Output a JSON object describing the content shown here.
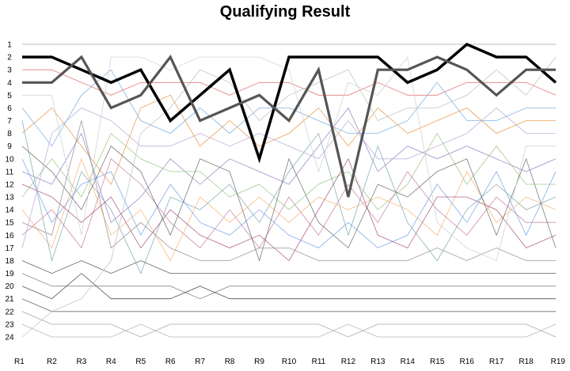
{
  "chart_data": {
    "type": "line",
    "title": "Qualifying Result",
    "xlabel": "",
    "ylabel": "",
    "x": [
      "R1",
      "R2",
      "R3",
      "R4",
      "R5",
      "R6",
      "R7",
      "R8",
      "R9",
      "R10",
      "R11",
      "R12",
      "R13",
      "R14",
      "R15",
      "R16",
      "R17",
      "R18",
      "R19"
    ],
    "y_ticks": [
      1,
      2,
      3,
      4,
      5,
      6,
      7,
      8,
      9,
      10,
      11,
      12,
      13,
      14,
      15,
      16,
      17,
      18,
      19,
      20,
      21,
      22,
      23,
      24
    ],
    "ylim": [
      24,
      1
    ],
    "y_inverted": true,
    "grid": false,
    "series": [
      {
        "color": "#000000",
        "emphasis": true,
        "values": [
          2,
          2,
          3,
          4,
          3,
          7,
          5,
          3,
          10,
          2,
          2,
          2,
          2,
          4,
          3,
          1,
          2,
          2,
          4
        ]
      },
      {
        "color": "#555555",
        "emphasis": true,
        "values": [
          4,
          4,
          2,
          6,
          5,
          2,
          7,
          6,
          5,
          7,
          3,
          13,
          3,
          3,
          2,
          3,
          5,
          3,
          3
        ]
      },
      {
        "color": "#999999",
        "values": [
          1,
          1,
          1,
          1,
          1,
          1,
          1,
          1,
          1,
          1,
          1,
          1,
          1,
          1,
          1,
          1,
          1,
          1,
          1
        ]
      },
      {
        "color": "#e06666",
        "values": [
          3,
          3,
          4,
          5,
          4,
          4,
          4,
          5,
          4,
          4,
          5,
          5,
          4,
          5,
          5,
          4,
          4,
          4,
          5
        ]
      },
      {
        "color": "#6fa8dc",
        "values": [
          6,
          9,
          5,
          3,
          7,
          8,
          6,
          8,
          6,
          6,
          7,
          8,
          8,
          7,
          4,
          7,
          7,
          6,
          6
        ]
      },
      {
        "color": "#e69138",
        "values": [
          8,
          6,
          9,
          12,
          6,
          5,
          9,
          7,
          9,
          8,
          6,
          9,
          6,
          8,
          7,
          6,
          8,
          7,
          7
        ]
      },
      {
        "color": "#8e7cc3",
        "values": [
          11,
          12,
          8,
          15,
          13,
          10,
          12,
          10,
          11,
          12,
          9,
          6,
          11,
          9,
          10,
          9,
          10,
          11,
          10
        ]
      },
      {
        "color": "#93c47d",
        "values": [
          13,
          10,
          13,
          8,
          10,
          11,
          11,
          13,
          12,
          14,
          12,
          11,
          14,
          12,
          8,
          12,
          9,
          12,
          12
        ]
      },
      {
        "color": "#76a5af",
        "values": [
          7,
          18,
          11,
          14,
          19,
          13,
          14,
          12,
          15,
          11,
          8,
          16,
          9,
          15,
          18,
          14,
          12,
          14,
          13
        ]
      },
      {
        "color": "#c27ba0",
        "values": [
          16,
          14,
          17,
          10,
          12,
          15,
          17,
          14,
          17,
          13,
          16,
          12,
          15,
          11,
          14,
          16,
          13,
          15,
          15
        ]
      },
      {
        "color": "#f6b26b",
        "values": [
          14,
          17,
          10,
          16,
          14,
          18,
          13,
          15,
          13,
          15,
          13,
          14,
          13,
          14,
          16,
          11,
          15,
          13,
          14
        ]
      },
      {
        "color": "#6d9eeb",
        "values": [
          10,
          15,
          12,
          11,
          16,
          12,
          15,
          16,
          14,
          16,
          17,
          15,
          17,
          16,
          12,
          15,
          11,
          16,
          11
        ]
      },
      {
        "color": "#a64d79",
        "values": [
          12,
          13,
          15,
          13,
          17,
          14,
          16,
          17,
          16,
          18,
          14,
          10,
          16,
          17,
          13,
          13,
          14,
          17,
          16
        ]
      },
      {
        "color": "#666666",
        "values": [
          9,
          11,
          14,
          9,
          11,
          16,
          10,
          11,
          18,
          10,
          15,
          17,
          12,
          13,
          11,
          10,
          16,
          10,
          17
        ]
      },
      {
        "color": "#888888",
        "values": [
          15,
          16,
          7,
          17,
          15,
          17,
          18,
          18,
          17,
          17,
          18,
          18,
          18,
          18,
          17,
          18,
          17,
          18,
          18
        ]
      },
      {
        "color": "#444444",
        "values": [
          18,
          19,
          18,
          19,
          18,
          19,
          19,
          19,
          19,
          19,
          19,
          19,
          19,
          19,
          19,
          19,
          19,
          19,
          19
        ]
      },
      {
        "color": "#777777",
        "values": [
          19,
          20,
          20,
          20,
          20,
          20,
          21,
          20,
          20,
          20,
          20,
          20,
          20,
          20,
          20,
          20,
          20,
          20,
          20
        ]
      },
      {
        "color": "#333333",
        "values": [
          20,
          21,
          19,
          21,
          21,
          21,
          20,
          21,
          21,
          21,
          21,
          21,
          21,
          21,
          21,
          21,
          21,
          21,
          21
        ]
      },
      {
        "color": "#555555",
        "values": [
          21,
          22,
          22,
          22,
          22,
          22,
          22,
          22,
          22,
          22,
          22,
          22,
          22,
          22,
          22,
          22,
          22,
          22,
          22
        ]
      },
      {
        "color": "#b4a7d6",
        "values": [
          17,
          8,
          6,
          7,
          9,
          9,
          8,
          9,
          8,
          9,
          10,
          7,
          10,
          10,
          9,
          8,
          6,
          8,
          8
        ]
      },
      {
        "color": "#999999",
        "values": [
          22,
          23,
          23,
          23,
          24,
          23,
          23,
          23,
          23,
          23,
          23,
          24,
          23,
          23,
          23,
          23,
          23,
          23,
          24
        ]
      },
      {
        "color": "#aaaaaa",
        "values": [
          23,
          24,
          24,
          24,
          23,
          24,
          24,
          24,
          24,
          24,
          24,
          23,
          24,
          24,
          24,
          24,
          24,
          24,
          23
        ]
      },
      {
        "color": "#bbbbbb",
        "values": [
          24,
          22,
          21,
          18,
          8,
          6,
          3,
          4,
          7,
          5,
          4,
          3,
          7,
          6,
          6,
          5,
          3,
          5,
          2
        ]
      },
      {
        "color": "#cccccc",
        "values": [
          5,
          5,
          16,
          2,
          2,
          3,
          2,
          2,
          2,
          3,
          11,
          4,
          5,
          2,
          15,
          17,
          18,
          9,
          9
        ]
      }
    ]
  }
}
